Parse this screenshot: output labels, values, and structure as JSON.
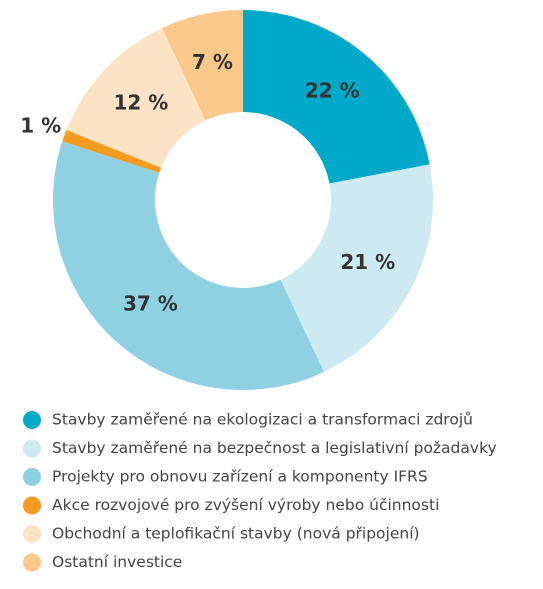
{
  "chart_data": {
    "type": "donut",
    "categories": [
      "Stavby zaměřené na ekologizaci a transformaci zdrojů",
      "Stavby zaměřené na bezpečnost a legislativní požadavky",
      "Projekty pro obnovu zařízení a komponenty IFRS",
      "Akce rozvojové pro zvýšení výroby nebo účinnosti",
      "Obchodní a teplofikační stavby (nová připojení)",
      "Ostatní investice"
    ],
    "values": [
      22,
      21,
      37,
      1,
      12,
      7
    ],
    "value_labels": [
      "22 %",
      "21 %",
      "37 %",
      "1 %",
      "12 %",
      "7 %"
    ],
    "colors": [
      "#00a9c9",
      "#cde9f2",
      "#8fd1e2",
      "#f39c1f",
      "#fde3c6",
      "#fbc88c"
    ]
  }
}
